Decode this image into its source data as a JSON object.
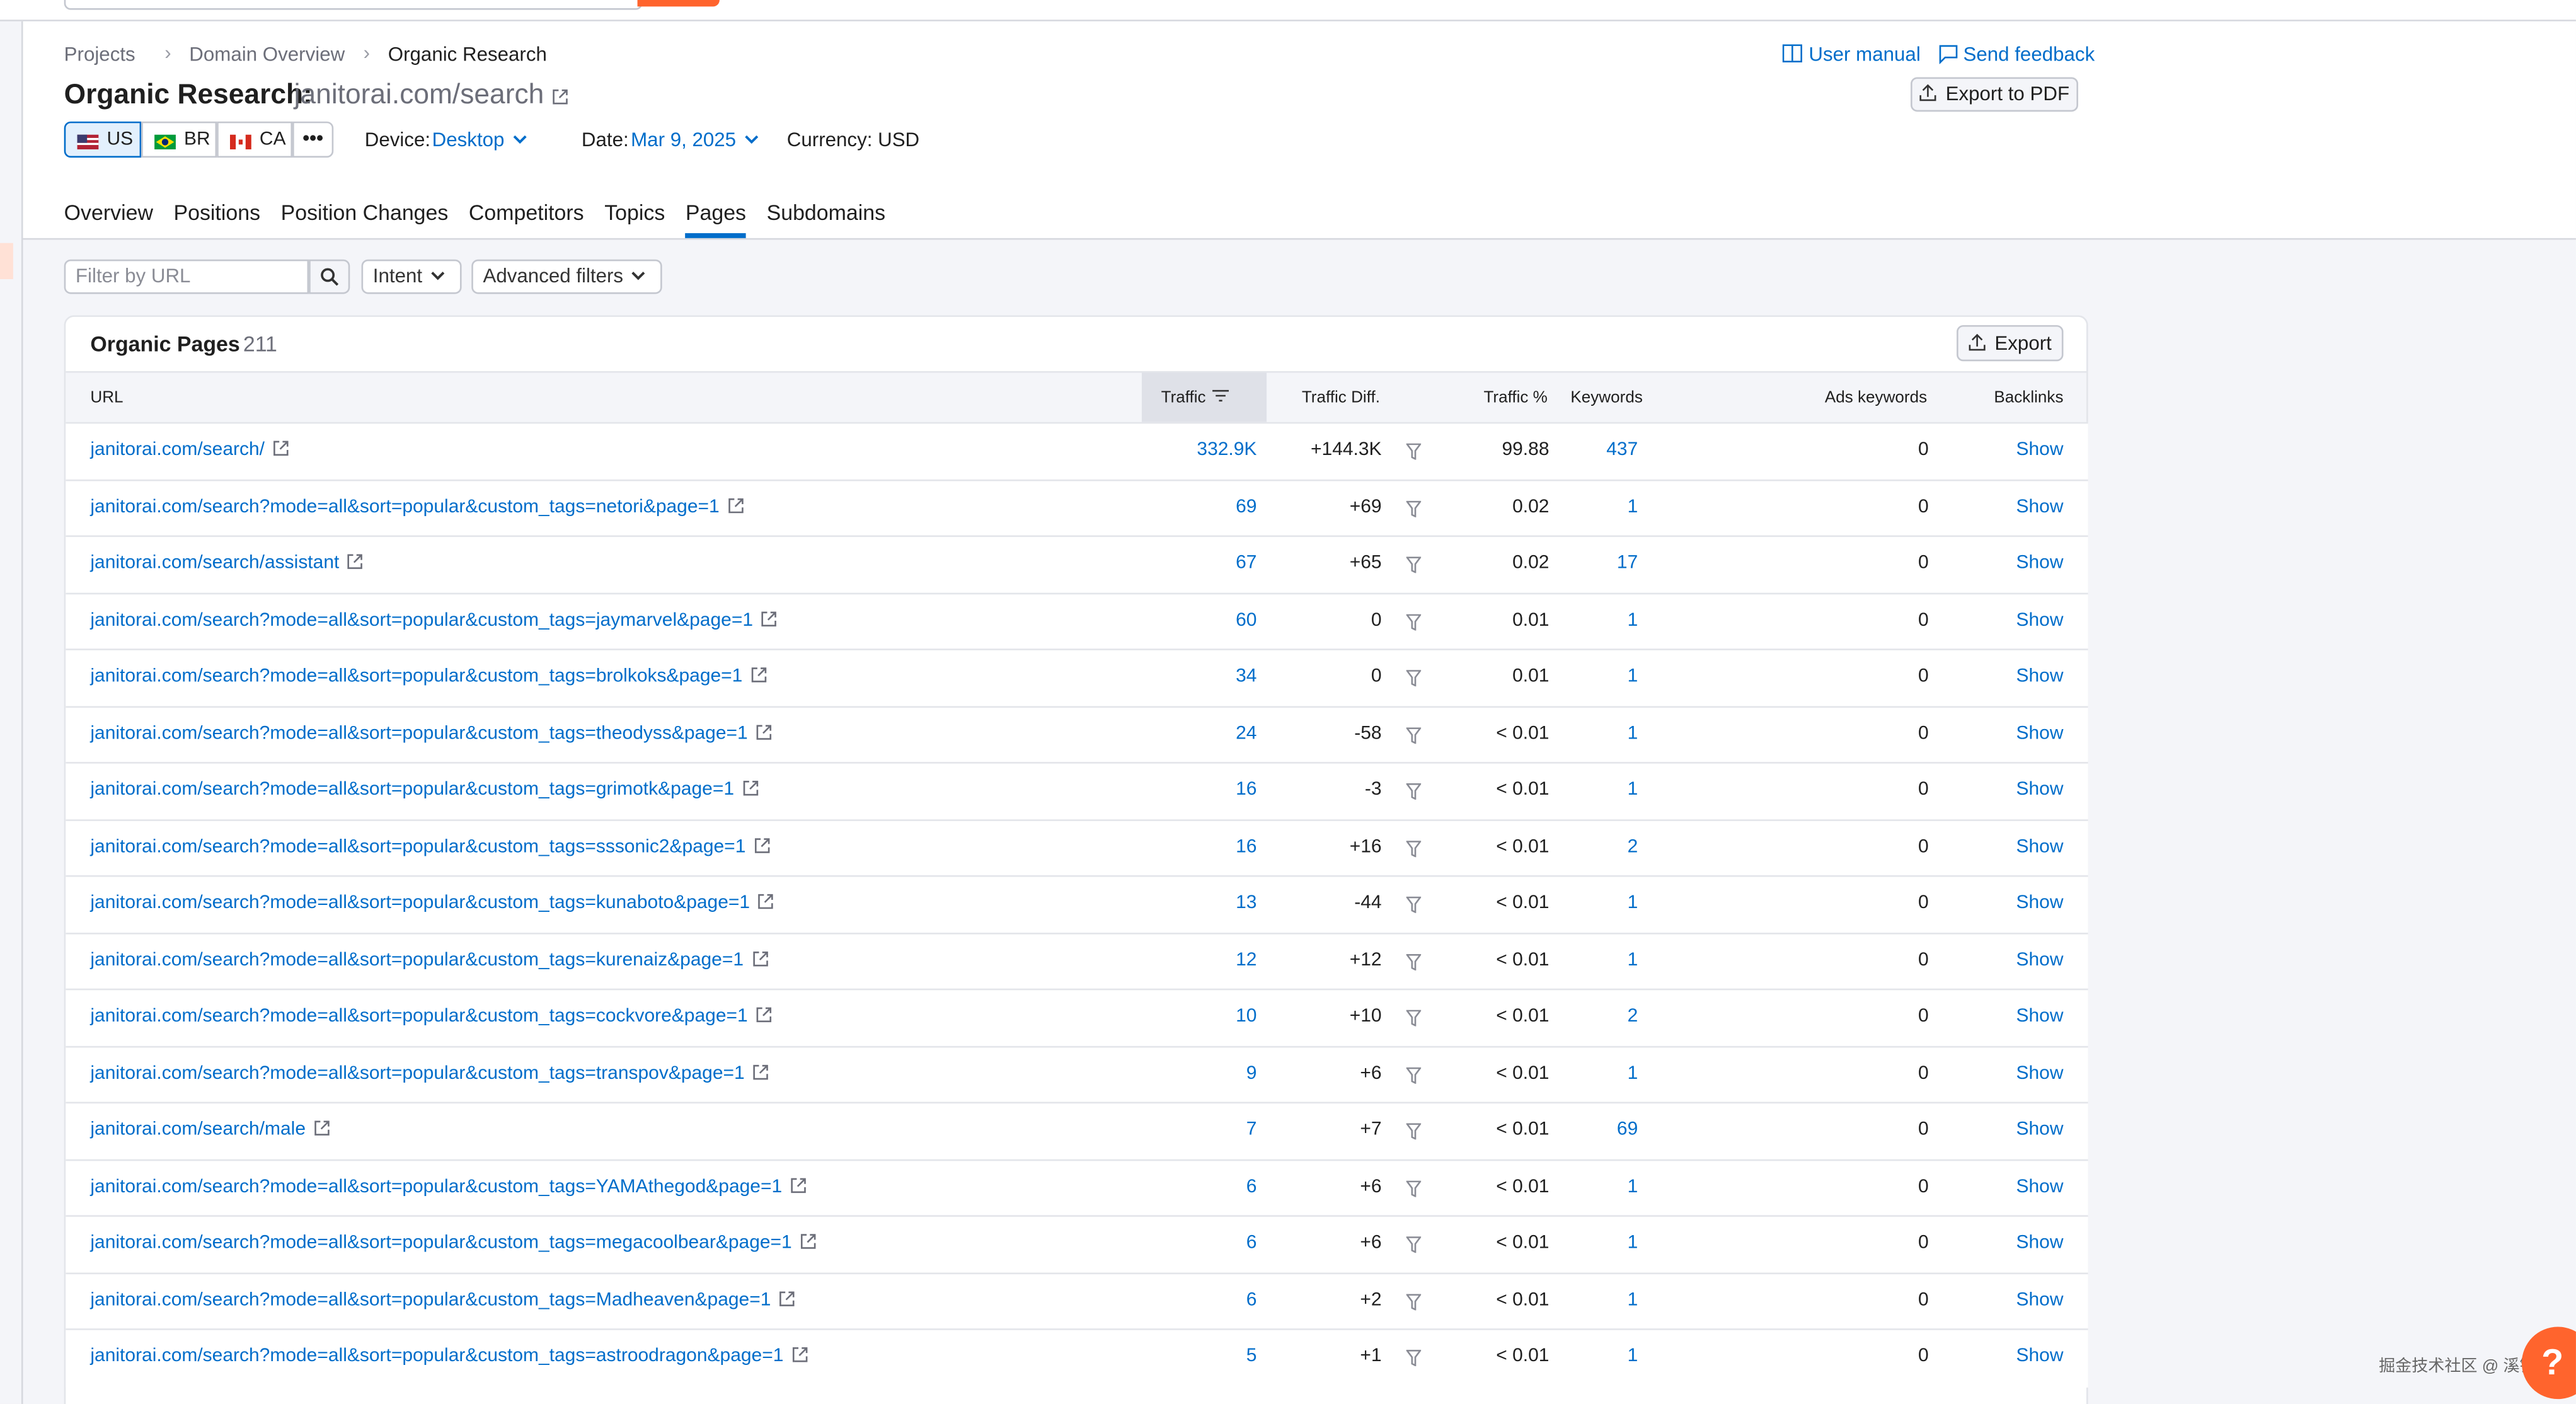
{
  "breadcrumbs": [
    "Projects",
    "Domain Overview",
    "Organic Research"
  ],
  "header": {
    "title": "Organic Research:",
    "domain": "janitorai.com/search",
    "user_manual": "User manual",
    "send_feedback": "Send feedback",
    "export_pdf": "Export to PDF"
  },
  "databases": [
    "US",
    "BR",
    "CA"
  ],
  "device": {
    "label": "Device:",
    "value": "Desktop"
  },
  "date": {
    "label": "Date:",
    "value": "Mar 9, 2025"
  },
  "currency": "Currency: USD",
  "tabs": [
    {
      "label": "Overview"
    },
    {
      "label": "Positions"
    },
    {
      "label": "Position Changes"
    },
    {
      "label": "Competitors"
    },
    {
      "label": "Topics"
    },
    {
      "label": "Pages",
      "active": true
    },
    {
      "label": "Subdomains"
    }
  ],
  "filters": {
    "url_placeholder": "Filter by URL",
    "intent": "Intent",
    "advanced": "Advanced filters"
  },
  "table": {
    "title": "Organic Pages",
    "count": 211,
    "export": "Export",
    "columns": [
      "URL",
      "Traffic",
      "Traffic Diff.",
      "Traffic %",
      "Keywords",
      "Ads keywords",
      "Backlinks"
    ],
    "rows": [
      {
        "url": "janitorai.com/search/",
        "traffic": "332.9K",
        "traffic_diff": "+144.3K",
        "traffic_pct": "99.88",
        "keywords": 437,
        "ads_keywords": 0,
        "backlinks": "Show",
        "intent": [
          "#009ee8",
          "#a855f7",
          "#ff9f1c",
          "#19cf8f"
        ]
      },
      {
        "url": "janitorai.com/search?mode=all&sort=popular&custom_tags=netori&page=1",
        "traffic": 69,
        "traffic_diff": "+69",
        "traffic_pct": "0.02",
        "keywords": 1,
        "ads_keywords": 0,
        "backlinks": "Show",
        "intent": [
          "#009ee8"
        ]
      },
      {
        "url": "janitorai.com/search/assistant",
        "traffic": 67,
        "traffic_diff": "+65",
        "traffic_pct": "0.02",
        "keywords": 17,
        "ads_keywords": 0,
        "backlinks": "Show",
        "intent": [
          "#009ee8",
          "#a855f7"
        ]
      },
      {
        "url": "janitorai.com/search?mode=all&sort=popular&custom_tags=jaymarvel&page=1",
        "traffic": 60,
        "traffic_diff": "0",
        "traffic_pct": "0.01",
        "keywords": 1,
        "ads_keywords": 0,
        "backlinks": "Show",
        "intent": [
          "#009ee8"
        ]
      },
      {
        "url": "janitorai.com/search?mode=all&sort=popular&custom_tags=brolkoks&page=1",
        "traffic": 34,
        "traffic_diff": "0",
        "traffic_pct": "0.01",
        "keywords": 1,
        "ads_keywords": 0,
        "backlinks": "Show",
        "intent": [
          "#009ee8"
        ]
      },
      {
        "url": "janitorai.com/search?mode=all&sort=popular&custom_tags=theodyss&page=1",
        "traffic": 24,
        "traffic_diff": "-58",
        "traffic_pct": "< 0.01",
        "keywords": 1,
        "ads_keywords": 0,
        "backlinks": "Show",
        "intent": [
          "#009ee8"
        ]
      },
      {
        "url": "janitorai.com/search?mode=all&sort=popular&custom_tags=grimotk&page=1",
        "traffic": 16,
        "traffic_diff": "-3",
        "traffic_pct": "< 0.01",
        "keywords": 1,
        "ads_keywords": 0,
        "backlinks": "Show",
        "intent": [
          "#009ee8"
        ]
      },
      {
        "url": "janitorai.com/search?mode=all&sort=popular&custom_tags=sssonic2&page=1",
        "traffic": 16,
        "traffic_diff": "+16",
        "traffic_pct": "< 0.01",
        "keywords": 2,
        "ads_keywords": 0,
        "backlinks": "Show",
        "intent": [
          "#009ee8"
        ]
      },
      {
        "url": "janitorai.com/search?mode=all&sort=popular&custom_tags=kunaboto&page=1",
        "traffic": 13,
        "traffic_diff": "-44",
        "traffic_pct": "< 0.01",
        "keywords": 1,
        "ads_keywords": 0,
        "backlinks": "Show",
        "intent": [
          "#009ee8"
        ]
      },
      {
        "url": "janitorai.com/search?mode=all&sort=popular&custom_tags=kurenaiz&page=1",
        "traffic": 12,
        "traffic_diff": "+12",
        "traffic_pct": "< 0.01",
        "keywords": 1,
        "ads_keywords": 0,
        "backlinks": "Show",
        "intent": [
          "#009ee8"
        ]
      },
      {
        "url": "janitorai.com/search?mode=all&sort=popular&custom_tags=cockvore&page=1",
        "traffic": 10,
        "traffic_diff": "+10",
        "traffic_pct": "< 0.01",
        "keywords": 2,
        "ads_keywords": 0,
        "backlinks": "Show",
        "intent": [
          "#c4c7cf"
        ]
      },
      {
        "url": "janitorai.com/search?mode=all&sort=popular&custom_tags=transpov&page=1",
        "traffic": 9,
        "traffic_diff": "+6",
        "traffic_pct": "< 0.01",
        "keywords": 1,
        "ads_keywords": 0,
        "backlinks": "Show",
        "intent": [
          "#009ee8"
        ]
      },
      {
        "url": "janitorai.com/search/male",
        "traffic": 7,
        "traffic_diff": "+7",
        "traffic_pct": "< 0.01",
        "keywords": 69,
        "ads_keywords": 0,
        "backlinks": "Show",
        "intent": [
          "#c4c7cf"
        ]
      },
      {
        "url": "janitorai.com/search?mode=all&sort=popular&custom_tags=YAMAthegod&page=1",
        "traffic": 6,
        "traffic_diff": "+6",
        "traffic_pct": "< 0.01",
        "keywords": 1,
        "ads_keywords": 0,
        "backlinks": "Show",
        "intent": [
          "#c4c7cf"
        ]
      },
      {
        "url": "janitorai.com/search?mode=all&sort=popular&custom_tags=megacoolbear&page=1",
        "traffic": 6,
        "traffic_diff": "+6",
        "traffic_pct": "< 0.01",
        "keywords": 1,
        "ads_keywords": 0,
        "backlinks": "Show",
        "intent": [
          "#009ee8"
        ]
      },
      {
        "url": "janitorai.com/search?mode=all&sort=popular&custom_tags=Madheaven&page=1",
        "traffic": 6,
        "traffic_diff": "+2",
        "traffic_pct": "< 0.01",
        "keywords": 1,
        "ads_keywords": 0,
        "backlinks": "Show",
        "intent": [
          "#009ee8"
        ]
      },
      {
        "url": "janitorai.com/search?mode=all&sort=popular&custom_tags=astroodragon&page=1",
        "traffic": 5,
        "traffic_diff": "+1",
        "traffic_pct": "< 0.01",
        "keywords": 1,
        "ads_keywords": 0,
        "backlinks": "Show",
        "intent": [
          "#009ee8"
        ]
      }
    ]
  },
  "watermark": "掘金技术社区 @ 溪锦鱼"
}
